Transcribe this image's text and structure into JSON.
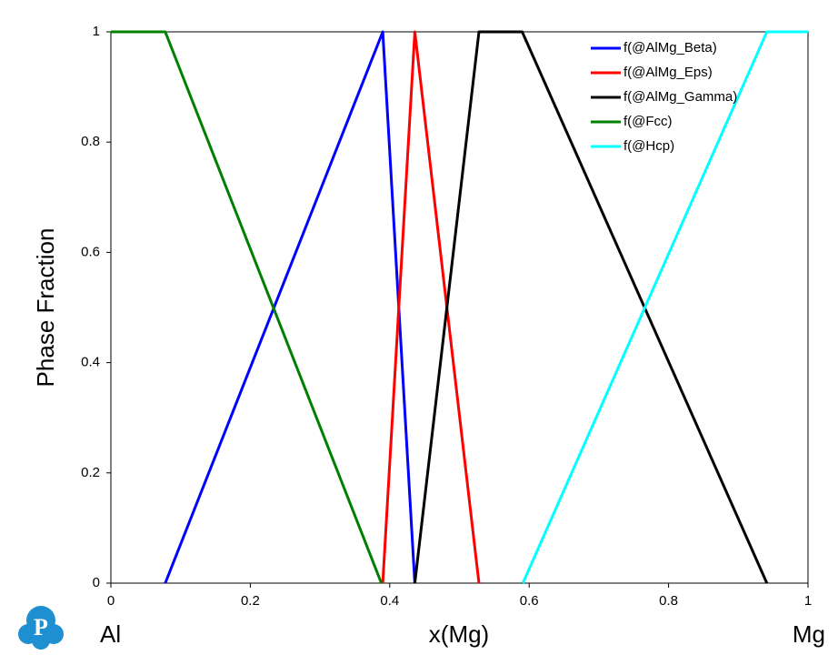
{
  "chart_data": {
    "type": "line",
    "xlabel": "x(Mg)",
    "ylabel": "Phase Fraction",
    "annotations": [
      "Al",
      "Mg"
    ],
    "xlim": [
      0,
      1
    ],
    "ylim": [
      0,
      1
    ],
    "xticks": [
      0,
      0.2,
      0.4,
      0.6,
      0.8,
      1
    ],
    "yticks": [
      0,
      0.2,
      0.4,
      0.6,
      0.8,
      1
    ],
    "grid": false,
    "legend": "upper right",
    "series": [
      {
        "name": "f(@AlMg_Beta)",
        "color": "#0000ff",
        "x": [
          0.078,
          0.39,
          0.436
        ],
        "values": [
          0,
          1,
          0
        ]
      },
      {
        "name": "f(@AlMg_Eps)",
        "color": "#ff0000",
        "x": [
          0.39,
          0.436,
          0.528
        ],
        "values": [
          0,
          1,
          0
        ]
      },
      {
        "name": "f(@AlMg_Gamma)",
        "color": "#000000",
        "x": [
          0.436,
          0.528,
          0.59,
          0.941
        ],
        "values": [
          0,
          1,
          1,
          0
        ]
      },
      {
        "name": "f(@Fcc)",
        "color": "#008000",
        "x": [
          0,
          0.078,
          0.388
        ],
        "values": [
          1,
          1,
          0
        ]
      },
      {
        "name": "f(@Hcp)",
        "color": "#00ffff",
        "x": [
          0.591,
          0.941,
          1
        ],
        "values": [
          0,
          1,
          1
        ]
      }
    ]
  },
  "logo": {
    "text": "P"
  }
}
